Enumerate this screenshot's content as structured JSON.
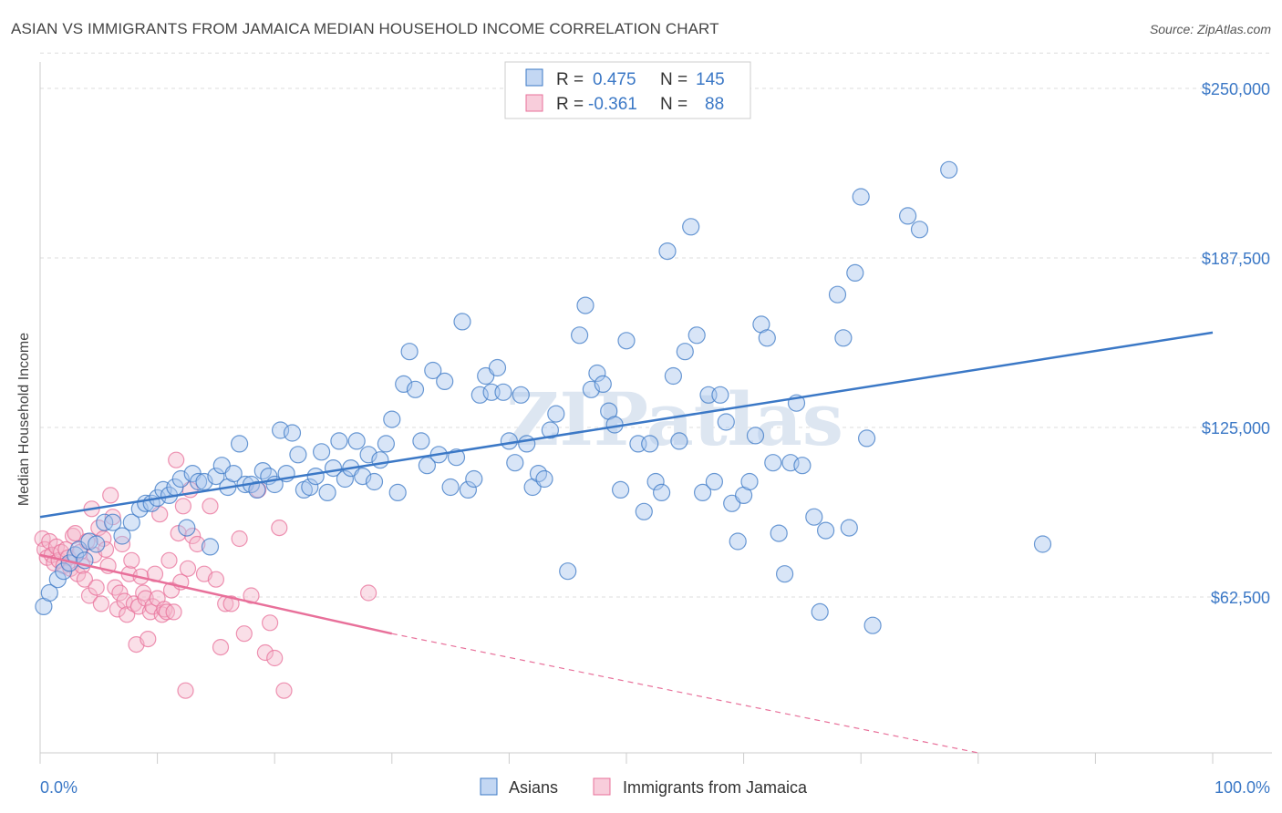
{
  "title": "ASIAN VS IMMIGRANTS FROM JAMAICA MEDIAN HOUSEHOLD INCOME CORRELATION CHART",
  "source": "Source: ZipAtlas.com",
  "colors": {
    "blue": "#3b78c6",
    "blue_fill": "#a9c6ee",
    "pink": "#e8709a",
    "pink_fill": "#f5b8cc",
    "grid": "#dddddd"
  },
  "legend_box": {
    "rows": [
      {
        "r_label": "R =",
        "r_value": "0.475",
        "n_label": "N =",
        "n_value": "145"
      },
      {
        "r_label": "R =",
        "r_value": "-0.361",
        "n_label": "N =",
        "n_value": "88"
      }
    ]
  },
  "watermark": "ZIPatlas",
  "chart_data": {
    "type": "scatter",
    "ylabel": "Median Household Income",
    "xlim": [
      0,
      100
    ],
    "ylim": [
      0,
      265000
    ],
    "x_tick_labels": [
      "0.0%",
      "100.0%"
    ],
    "y_ticks": [
      62500,
      125000,
      187500,
      250000
    ],
    "y_tick_labels": [
      "$62,500",
      "$125,000",
      "$187,500",
      "$250,000"
    ],
    "grid": true,
    "legend_position": "top-center",
    "series": [
      {
        "name": "Asians",
        "r": 0.475,
        "n": 145,
        "trend": {
          "x": [
            0,
            100
          ],
          "y": [
            92000,
            160000
          ]
        },
        "points": [
          [
            0.3,
            59000
          ],
          [
            0.8,
            64000
          ],
          [
            1.5,
            69000
          ],
          [
            2.0,
            72000
          ],
          [
            2.5,
            75000
          ],
          [
            3.0,
            78000
          ],
          [
            3.3,
            80000
          ],
          [
            3.8,
            76000
          ],
          [
            4.2,
            83000
          ],
          [
            4.8,
            82000
          ],
          [
            5.5,
            90000
          ],
          [
            6.2,
            90000
          ],
          [
            7.0,
            85000
          ],
          [
            7.8,
            90000
          ],
          [
            8.5,
            95000
          ],
          [
            9.0,
            97000
          ],
          [
            9.5,
            97000
          ],
          [
            10.0,
            99000
          ],
          [
            10.5,
            102000
          ],
          [
            11.0,
            100000
          ],
          [
            11.5,
            103000
          ],
          [
            12.0,
            106000
          ],
          [
            12.5,
            88000
          ],
          [
            13.0,
            108000
          ],
          [
            13.5,
            105000
          ],
          [
            14.0,
            105000
          ],
          [
            14.5,
            81000
          ],
          [
            15.0,
            107000
          ],
          [
            15.5,
            111000
          ],
          [
            16.0,
            103000
          ],
          [
            16.5,
            108000
          ],
          [
            17.0,
            119000
          ],
          [
            17.5,
            104000
          ],
          [
            18.0,
            104000
          ],
          [
            18.5,
            102000
          ],
          [
            19.0,
            109000
          ],
          [
            19.5,
            107000
          ],
          [
            20.0,
            104000
          ],
          [
            20.5,
            124000
          ],
          [
            21.0,
            108000
          ],
          [
            21.5,
            123000
          ],
          [
            22.0,
            115000
          ],
          [
            22.5,
            102000
          ],
          [
            23.0,
            103000
          ],
          [
            23.5,
            107000
          ],
          [
            24.0,
            116000
          ],
          [
            24.5,
            101000
          ],
          [
            25.0,
            110000
          ],
          [
            25.5,
            120000
          ],
          [
            26.0,
            106000
          ],
          [
            26.5,
            110000
          ],
          [
            27.0,
            120000
          ],
          [
            27.5,
            107000
          ],
          [
            28.0,
            115000
          ],
          [
            28.5,
            105000
          ],
          [
            29.0,
            113000
          ],
          [
            29.5,
            119000
          ],
          [
            30.0,
            128000
          ],
          [
            30.5,
            101000
          ],
          [
            31.0,
            141000
          ],
          [
            31.5,
            153000
          ],
          [
            32.0,
            139000
          ],
          [
            32.5,
            120000
          ],
          [
            33.0,
            111000
          ],
          [
            33.5,
            146000
          ],
          [
            34.0,
            115000
          ],
          [
            34.5,
            142000
          ],
          [
            35.0,
            103000
          ],
          [
            35.5,
            114000
          ],
          [
            36.0,
            164000
          ],
          [
            36.5,
            102000
          ],
          [
            37.0,
            106000
          ],
          [
            37.5,
            137000
          ],
          [
            38.0,
            144000
          ],
          [
            38.5,
            138000
          ],
          [
            39.0,
            147000
          ],
          [
            39.5,
            138000
          ],
          [
            40.0,
            120000
          ],
          [
            40.5,
            112000
          ],
          [
            41.0,
            137000
          ],
          [
            41.5,
            119000
          ],
          [
            42.0,
            103000
          ],
          [
            42.5,
            108000
          ],
          [
            43.0,
            106000
          ],
          [
            43.5,
            124000
          ],
          [
            44.0,
            130000
          ],
          [
            45.0,
            72000
          ],
          [
            46.0,
            159000
          ],
          [
            46.5,
            170000
          ],
          [
            47.0,
            139000
          ],
          [
            47.5,
            145000
          ],
          [
            48.0,
            141000
          ],
          [
            48.5,
            131000
          ],
          [
            49.0,
            126000
          ],
          [
            49.5,
            102000
          ],
          [
            50.0,
            157000
          ],
          [
            51.0,
            119000
          ],
          [
            51.5,
            94000
          ],
          [
            52.0,
            119000
          ],
          [
            52.5,
            105000
          ],
          [
            53.0,
            101000
          ],
          [
            53.5,
            190000
          ],
          [
            54.0,
            144000
          ],
          [
            54.5,
            120000
          ],
          [
            55.0,
            153000
          ],
          [
            55.5,
            199000
          ],
          [
            56.0,
            159000
          ],
          [
            56.5,
            101000
          ],
          [
            57.0,
            137000
          ],
          [
            57.5,
            105000
          ],
          [
            58.0,
            137000
          ],
          [
            58.5,
            127000
          ],
          [
            59.0,
            97000
          ],
          [
            59.5,
            83000
          ],
          [
            60.0,
            100000
          ],
          [
            60.5,
            105000
          ],
          [
            61.0,
            122000
          ],
          [
            61.5,
            163000
          ],
          [
            62.0,
            158000
          ],
          [
            62.5,
            112000
          ],
          [
            63.0,
            86000
          ],
          [
            63.5,
            71000
          ],
          [
            64.0,
            112000
          ],
          [
            64.5,
            134000
          ],
          [
            65.0,
            111000
          ],
          [
            66.0,
            92000
          ],
          [
            66.5,
            57000
          ],
          [
            67.0,
            87000
          ],
          [
            68.0,
            174000
          ],
          [
            68.5,
            158000
          ],
          [
            69.0,
            88000
          ],
          [
            69.5,
            182000
          ],
          [
            70.0,
            210000
          ],
          [
            70.5,
            121000
          ],
          [
            71.0,
            52000
          ],
          [
            74.0,
            203000
          ],
          [
            75.0,
            198000
          ],
          [
            77.5,
            220000
          ],
          [
            85.5,
            82000
          ]
        ]
      },
      {
        "name": "Immigrants from Jamaica",
        "r": -0.361,
        "n": 88,
        "trend": {
          "x": [
            0,
            30
          ],
          "y": [
            78000,
            49000
          ]
        },
        "trend_dashed": {
          "x": [
            30,
            80
          ],
          "y": [
            49000,
            0
          ]
        },
        "points": [
          [
            0.2,
            84000
          ],
          [
            0.4,
            80000
          ],
          [
            0.6,
            77000
          ],
          [
            0.8,
            83000
          ],
          [
            1.0,
            78000
          ],
          [
            1.2,
            75000
          ],
          [
            1.4,
            81000
          ],
          [
            1.6,
            76000
          ],
          [
            1.8,
            79000
          ],
          [
            2.0,
            74000
          ],
          [
            2.2,
            80000
          ],
          [
            2.4,
            77000
          ],
          [
            2.6,
            73000
          ],
          [
            2.8,
            85000
          ],
          [
            3.0,
            86000
          ],
          [
            3.2,
            71000
          ],
          [
            3.4,
            79000
          ],
          [
            3.6,
            74000
          ],
          [
            3.8,
            69000
          ],
          [
            4.0,
            83000
          ],
          [
            4.2,
            63000
          ],
          [
            4.4,
            95000
          ],
          [
            4.6,
            78000
          ],
          [
            4.8,
            66000
          ],
          [
            5.0,
            88000
          ],
          [
            5.2,
            60000
          ],
          [
            5.4,
            84000
          ],
          [
            5.6,
            80000
          ],
          [
            5.8,
            74000
          ],
          [
            6.0,
            100000
          ],
          [
            6.2,
            92000
          ],
          [
            6.4,
            66000
          ],
          [
            6.6,
            58000
          ],
          [
            6.8,
            64000
          ],
          [
            7.0,
            82000
          ],
          [
            7.2,
            61000
          ],
          [
            7.4,
            56000
          ],
          [
            7.6,
            71000
          ],
          [
            7.8,
            76000
          ],
          [
            8.0,
            60000
          ],
          [
            8.2,
            45000
          ],
          [
            8.4,
            59000
          ],
          [
            8.6,
            70000
          ],
          [
            8.8,
            64000
          ],
          [
            9.0,
            62000
          ],
          [
            9.2,
            47000
          ],
          [
            9.4,
            57000
          ],
          [
            9.6,
            59000
          ],
          [
            9.8,
            71000
          ],
          [
            10.0,
            62000
          ],
          [
            10.2,
            93000
          ],
          [
            10.4,
            56000
          ],
          [
            10.6,
            58000
          ],
          [
            10.8,
            57000
          ],
          [
            11.0,
            76000
          ],
          [
            11.2,
            65000
          ],
          [
            11.4,
            57000
          ],
          [
            11.6,
            113000
          ],
          [
            11.8,
            86000
          ],
          [
            12.0,
            68000
          ],
          [
            12.2,
            96000
          ],
          [
            12.4,
            28000
          ],
          [
            12.6,
            73000
          ],
          [
            12.8,
            102000
          ],
          [
            13.0,
            85000
          ],
          [
            13.4,
            82000
          ],
          [
            14.0,
            71000
          ],
          [
            14.5,
            96000
          ],
          [
            15.0,
            69000
          ],
          [
            15.4,
            44000
          ],
          [
            15.8,
            60000
          ],
          [
            16.3,
            60000
          ],
          [
            17.0,
            84000
          ],
          [
            17.4,
            49000
          ],
          [
            18.0,
            63000
          ],
          [
            18.6,
            102000
          ],
          [
            19.2,
            42000
          ],
          [
            19.6,
            53000
          ],
          [
            20.0,
            40000
          ],
          [
            20.4,
            88000
          ],
          [
            20.8,
            28000
          ],
          [
            28.0,
            64000
          ]
        ]
      }
    ]
  }
}
